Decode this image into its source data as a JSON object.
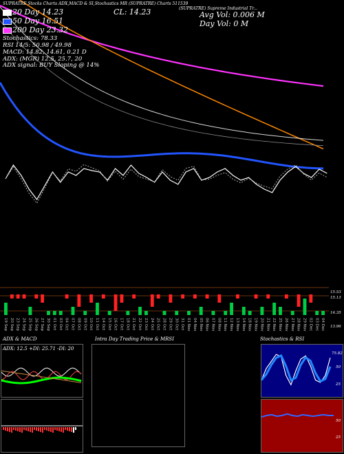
{
  "header": {
    "line1": "20 Day  14.23",
    "sma50": "50 Day  16.51",
    "sma200": "200 Day  23.32",
    "stoch_value": "Stochastics: 78.33",
    "rsi": "RSI 14/5: 50.98 / 49.98",
    "macd": "MACD: 14.82, 14.61, 0.21 D",
    "adx": "ADX: (MGR) 12.5, 25.7, 20",
    "adx_signal": "ADX signal: BUY Sloping @ 14%",
    "title_left": "(SUPRATRE) Supreme Industrial Tr...",
    "top_small": "SUPRATRE  Stocks Charts ADX,MACD & SI,Stochastics MR   (SUPRATRE) Charts 511539",
    "close": "CL: 14.23",
    "avg_vol": "Avg Vol: 0.006  M",
    "day_vol": "Day Vol: 0   M"
  },
  "volume_panel": {
    "right_ticks": [
      "15.53",
      "15.13",
      "14.35",
      "13.96"
    ],
    "x_labels": [
      "19 Sep",
      "20 Sep",
      "23 Sep",
      "24 Sep",
      "25 Sep",
      "26 Sep",
      "27 Sep",
      "30 Sep",
      "01 Oct",
      "03 Oct",
      "04 Oct",
      "07 Oct",
      "08 Oct",
      "09 Oct",
      "10 Oct",
      "11 Oct",
      "14 Oct",
      "15 Oct",
      "16 Oct",
      "17 Oct",
      "18 Oct",
      "21 Oct",
      "22 Oct",
      "23 Oct",
      "24 Oct",
      "25 Oct",
      "28 Oct",
      "29 Oct",
      "30 Oct",
      "31 Oct",
      "01 Nov",
      "04 Nov",
      "05 Nov",
      "06 Nov",
      "07 Nov",
      "08 Nov",
      "11 Nov",
      "12 Nov",
      "13 Nov",
      "14 Nov",
      "18 Nov",
      "19 Nov",
      "20 Nov",
      "21 Nov",
      "22 Nov",
      "25 Nov",
      "26 Nov",
      "27 Nov",
      "28 Nov",
      "29 Nov",
      "02 Dec",
      "03 Dec",
      "04 Dec"
    ]
  },
  "bottom_panels": {
    "adx_title": "ADX  & MACD",
    "adx_values": "ADX: 12.5  +DI: 25.71  -DI: 20",
    "intraday_title": "Intra Day Trading Price  & MRSI",
    "stoch_title": "Stochastics & RSI",
    "stoch_ticks": [
      "75.82",
      "50",
      "25"
    ],
    "rsi_ticks": [
      "50",
      "25"
    ]
  },
  "colors": {
    "background": "#000000",
    "sma20": "#ffffff",
    "sma50": "#2255ff",
    "sma200": "#ff33ff",
    "orange_line": "#ff8800",
    "up_bar": "#00cc44",
    "down_bar": "#ff2222",
    "stoch_bg": "#000080",
    "rsi_bg": "#990000"
  },
  "chart_data": [
    {
      "type": "line",
      "title": "",
      "series": [
        {
          "name": "20 Day",
          "values": [
            16.8,
            16.6,
            16.4,
            16.2,
            16.0,
            15.8,
            15.5,
            15.2,
            14.9,
            14.7,
            14.5,
            14.35,
            14.25,
            14.2,
            14.2
          ]
        },
        {
          "name": "50 Day",
          "values": [
            18.2,
            17.8,
            17.4,
            17.1,
            16.9,
            16.8,
            16.7,
            16.6,
            16.55,
            16.5,
            16.5,
            16.5,
            16.5,
            16.5,
            16.5
          ]
        },
        {
          "name": "200 Day",
          "values": [
            26.5,
            26.1,
            25.7,
            25.3,
            25.0,
            24.7,
            24.5,
            24.3,
            24.1,
            23.9,
            23.8,
            23.6,
            23.5,
            23.4,
            23.32
          ]
        }
      ]
    },
    {
      "type": "bar",
      "title": "",
      "values": [
        3,
        1,
        1,
        1,
        2,
        1,
        2,
        1,
        1,
        1,
        1,
        2,
        3,
        1,
        2,
        3,
        1,
        1,
        4,
        2,
        1,
        1,
        2,
        1,
        3,
        1,
        1,
        2,
        1,
        1,
        1,
        1,
        2,
        1,
        1,
        2,
        1,
        3,
        1,
        2,
        1,
        1,
        2,
        1,
        3,
        2,
        1,
        1,
        3,
        4,
        2,
        1,
        1
      ],
      "colors": [
        "up",
        "down",
        "down",
        "down",
        "up",
        "down",
        "down",
        "up",
        "up",
        "up",
        "down",
        "up",
        "down",
        "up",
        "down",
        "up",
        "down",
        "up",
        "down",
        "down",
        "up",
        "down",
        "up",
        "up",
        "down",
        "down",
        "up",
        "down",
        "up",
        "down",
        "up",
        "down",
        "up",
        "down",
        "up",
        "down",
        "up",
        "up",
        "down",
        "up",
        "up",
        "down",
        "up",
        "down",
        "up",
        "up",
        "down",
        "up",
        "down",
        "up",
        "down",
        "up",
        "up"
      ]
    },
    {
      "type": "line",
      "title": "",
      "series": [
        {
          "name": "Stochastics",
          "values": [
            30,
            55,
            70,
            85,
            80,
            40,
            20,
            50,
            75,
            82,
            60,
            30,
            25,
            40,
            78
          ]
        },
        {
          "name": "RSI",
          "values": [
            48,
            50,
            51,
            49,
            50,
            52,
            50,
            49,
            51,
            50,
            49,
            50,
            51,
            50,
            50
          ]
        }
      ]
    }
  ]
}
